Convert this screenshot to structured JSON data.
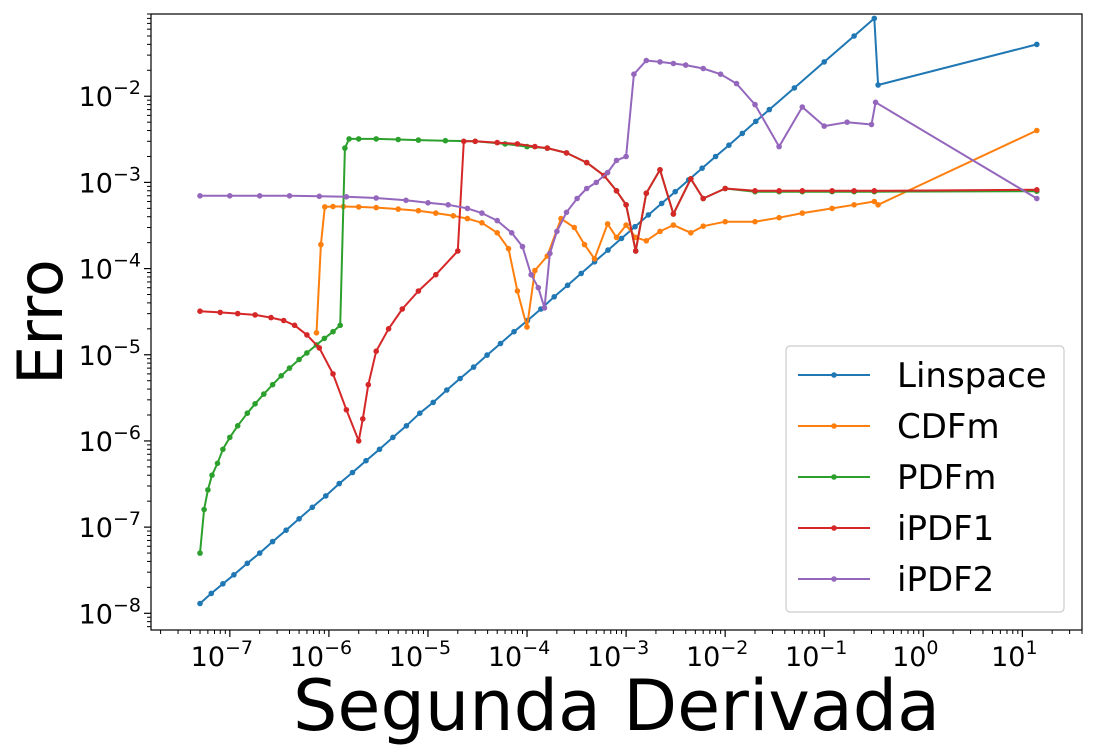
{
  "chart_data": {
    "type": "line",
    "title": "",
    "xlabel": "Segunda Derivada",
    "ylabel": "Erro",
    "xscale": "log",
    "yscale": "log",
    "xlim": [
      1.6e-08,
      40
    ],
    "ylim": [
      6.4e-09,
      0.09
    ],
    "grid": false,
    "legend_position": "lower right",
    "x_ticks": [
      {
        "base": "10",
        "exp": "−7",
        "value": 1e-07
      },
      {
        "base": "10",
        "exp": "−6",
        "value": 1e-06
      },
      {
        "base": "10",
        "exp": "−5",
        "value": 1e-05
      },
      {
        "base": "10",
        "exp": "−4",
        "value": 0.0001
      },
      {
        "base": "10",
        "exp": "−3",
        "value": 0.001
      },
      {
        "base": "10",
        "exp": "−2",
        "value": 0.01
      },
      {
        "base": "10",
        "exp": "−1",
        "value": 0.1
      },
      {
        "base": "10",
        "exp": "0",
        "value": 1
      },
      {
        "base": "10",
        "exp": "1",
        "value": 10
      }
    ],
    "y_ticks": [
      {
        "base": "10",
        "exp": "−8",
        "value": 1e-08
      },
      {
        "base": "10",
        "exp": "−7",
        "value": 1e-07
      },
      {
        "base": "10",
        "exp": "−6",
        "value": 1e-06
      },
      {
        "base": "10",
        "exp": "−5",
        "value": 1e-05
      },
      {
        "base": "10",
        "exp": "−4",
        "value": 0.0001
      },
      {
        "base": "10",
        "exp": "−3",
        "value": 0.001
      },
      {
        "base": "10",
        "exp": "−2",
        "value": 0.01
      }
    ],
    "series": [
      {
        "name": "Linspace",
        "color": "#1f77b4",
        "points": [
          [
            5e-08,
            1.3e-08
          ],
          [
            6.5e-08,
            1.7e-08
          ],
          [
            8.5e-08,
            2.2e-08
          ],
          [
            1.1e-07,
            2.8e-08
          ],
          [
            1.5e-07,
            3.8e-08
          ],
          [
            2e-07,
            5e-08
          ],
          [
            2.7e-07,
            6.8e-08
          ],
          [
            3.7e-07,
            9.2e-08
          ],
          [
            5e-07,
            1.25e-07
          ],
          [
            6.8e-07,
            1.7e-07
          ],
          [
            9.3e-07,
            2.3e-07
          ],
          [
            1.27e-06,
            3.2e-07
          ],
          [
            1.73e-06,
            4.3e-07
          ],
          [
            2.37e-06,
            5.9e-07
          ],
          [
            3.24e-06,
            8e-07
          ],
          [
            4.43e-06,
            1.1e-06
          ],
          [
            6.05e-06,
            1.5e-06
          ],
          [
            8.27e-06,
            2.1e-06
          ],
          [
            1.13e-05,
            2.8e-06
          ],
          [
            1.55e-05,
            3.9e-06
          ],
          [
            2.11e-05,
            5.3e-06
          ],
          [
            2.89e-05,
            7.2e-06
          ],
          [
            3.95e-05,
            9.9e-06
          ],
          [
            5.4e-05,
            1.35e-05
          ],
          [
            7.38e-05,
            1.85e-05
          ],
          [
            0.000101,
            2.5e-05
          ],
          [
            0.000138,
            3.4e-05
          ],
          [
            0.000188,
            4.7e-05
          ],
          [
            0.000257,
            6.4e-05
          ],
          [
            0.000352,
            8.8e-05
          ],
          [
            0.000481,
            0.00012
          ],
          [
            0.000657,
            0.000164
          ],
          [
            0.000898,
            0.000224
          ],
          [
            0.00123,
            0.000306
          ],
          [
            0.00168,
            0.00042
          ],
          [
            0.00229,
            0.00057
          ],
          [
            0.00313,
            0.00078
          ],
          [
            0.00428,
            0.00107
          ],
          [
            0.00585,
            0.00146
          ],
          [
            0.008,
            0.002
          ],
          [
            0.0109,
            0.0027
          ],
          [
            0.0149,
            0.0037
          ],
          [
            0.0204,
            0.0051
          ],
          [
            0.0279,
            0.007
          ],
          [
            0.05,
            0.0125
          ],
          [
            0.1,
            0.025
          ],
          [
            0.2,
            0.05
          ],
          [
            0.32,
            0.08
          ],
          [
            0.35,
            0.0135
          ],
          [
            14,
            0.04
          ]
        ]
      },
      {
        "name": "CDFm",
        "color": "#ff7f0e",
        "points": [
          [
            7.5e-07,
            1.8e-05
          ],
          [
            8.3e-07,
            0.00019
          ],
          [
            9.1e-07,
            0.00052
          ],
          [
            1.1e-06,
            0.000525
          ],
          [
            1.4e-06,
            0.000525
          ],
          [
            2e-06,
            0.00052
          ],
          [
            3e-06,
            0.00051
          ],
          [
            5e-06,
            0.00049
          ],
          [
            8e-06,
            0.00047
          ],
          [
            1.2e-05,
            0.00044
          ],
          [
            1.8e-05,
            0.00041
          ],
          [
            2.5e-05,
            0.00038
          ],
          [
            3.5e-05,
            0.00034
          ],
          [
            5e-05,
            0.00026
          ],
          [
            6.5e-05,
            0.00017
          ],
          [
            8e-05,
            5.5e-05
          ],
          [
            0.0001,
            2.1e-05
          ],
          [
            0.00012,
            9.5e-05
          ],
          [
            0.00016,
            0.00014
          ],
          [
            0.00022,
            0.00038
          ],
          [
            0.0003,
            0.0003
          ],
          [
            0.00038,
            0.00019
          ],
          [
            0.00048,
            0.00013
          ],
          [
            0.00065,
            0.00033
          ],
          [
            0.0008,
            0.00023
          ],
          [
            0.001,
            0.00032
          ],
          [
            0.00125,
            0.00023
          ],
          [
            0.0016,
            0.00021
          ],
          [
            0.0022,
            0.00027
          ],
          [
            0.003,
            0.00032
          ],
          [
            0.0045,
            0.00026
          ],
          [
            0.006,
            0.00031
          ],
          [
            0.01,
            0.00035
          ],
          [
            0.02,
            0.00035
          ],
          [
            0.035,
            0.00039
          ],
          [
            0.06,
            0.00044
          ],
          [
            0.12,
            0.0005
          ],
          [
            0.2,
            0.00055
          ],
          [
            0.32,
            0.0006
          ],
          [
            0.35,
            0.00055
          ],
          [
            14,
            0.004
          ]
        ]
      },
      {
        "name": "PDFm",
        "color": "#2ca02c",
        "points": [
          [
            5e-08,
            5e-08
          ],
          [
            5.5e-08,
            1.6e-07
          ],
          [
            6e-08,
            2.7e-07
          ],
          [
            6.6e-08,
            4e-07
          ],
          [
            7.5e-08,
            5.5e-07
          ],
          [
            8.5e-08,
            8e-07
          ],
          [
            1e-07,
            1.1e-06
          ],
          [
            1.2e-07,
            1.5e-06
          ],
          [
            1.5e-07,
            2.1e-06
          ],
          [
            1.8e-07,
            2.7e-06
          ],
          [
            2.2e-07,
            3.5e-06
          ],
          [
            2.7e-07,
            4.5e-06
          ],
          [
            3.3e-07,
            5.7e-06
          ],
          [
            4e-07,
            7e-06
          ],
          [
            5e-07,
            8.8e-06
          ],
          [
            6e-07,
            1.05e-05
          ],
          [
            7.5e-07,
            1.3e-05
          ],
          [
            9e-07,
            1.55e-05
          ],
          [
            1.1e-06,
            1.85e-05
          ],
          [
            1.3e-06,
            2.2e-05
          ],
          [
            1.45e-06,
            0.0025
          ],
          [
            1.6e-06,
            0.0032
          ],
          [
            2e-06,
            0.0032
          ],
          [
            3e-06,
            0.0032
          ],
          [
            5e-06,
            0.00315
          ],
          [
            8e-06,
            0.0031
          ],
          [
            1.5e-05,
            0.00305
          ],
          [
            3e-05,
            0.003
          ],
          [
            6e-05,
            0.0028
          ],
          [
            0.0001,
            0.0026
          ],
          [
            0.00016,
            0.0025
          ],
          [
            0.00025,
            0.0022
          ],
          [
            0.0004,
            0.0017
          ],
          [
            0.0006,
            0.0012
          ],
          [
            0.0008,
            0.0008
          ],
          [
            0.001,
            0.00055
          ],
          [
            0.00125,
            0.00016
          ],
          [
            0.0016,
            0.00075
          ],
          [
            0.0022,
            0.0014
          ],
          [
            0.003,
            0.00043
          ],
          [
            0.0045,
            0.0011
          ],
          [
            0.006,
            0.00065
          ],
          [
            0.01,
            0.00085
          ],
          [
            0.02,
            0.00078
          ],
          [
            0.035,
            0.00078
          ],
          [
            0.06,
            0.00078
          ],
          [
            0.12,
            0.00078
          ],
          [
            0.2,
            0.00078
          ],
          [
            0.32,
            0.00078
          ],
          [
            14,
            0.00079
          ]
        ]
      },
      {
        "name": "iPDF1",
        "color": "#d62728",
        "points": [
          [
            5e-08,
            3.2e-05
          ],
          [
            8e-08,
            3.1e-05
          ],
          [
            1.2e-07,
            3e-05
          ],
          [
            1.8e-07,
            2.9e-05
          ],
          [
            2.6e-07,
            2.7e-05
          ],
          [
            3.5e-07,
            2.5e-05
          ],
          [
            4.5e-07,
            2.2e-05
          ],
          [
            6e-07,
            1.7e-05
          ],
          [
            8e-07,
            1.2e-05
          ],
          [
            1.1e-06,
            6e-06
          ],
          [
            1.5e-06,
            2.3e-06
          ],
          [
            2e-06,
            1e-06
          ],
          [
            2.2e-06,
            1.8e-06
          ],
          [
            2.5e-06,
            4.5e-06
          ],
          [
            3e-06,
            1.1e-05
          ],
          [
            4e-06,
            2e-05
          ],
          [
            5.5e-06,
            3.4e-05
          ],
          [
            8e-06,
            5.5e-05
          ],
          [
            1.2e-05,
            8.5e-05
          ],
          [
            2e-05,
            0.00016
          ],
          [
            2.3e-05,
            0.003
          ],
          [
            3e-05,
            0.003
          ],
          [
            5e-05,
            0.0029
          ],
          [
            8e-05,
            0.0028
          ],
          [
            0.00012,
            0.0026
          ],
          [
            0.00016,
            0.0025
          ],
          [
            0.00025,
            0.0022
          ],
          [
            0.0004,
            0.0017
          ],
          [
            0.0006,
            0.0012
          ],
          [
            0.0008,
            0.0008
          ],
          [
            0.001,
            0.00055
          ],
          [
            0.00125,
            0.00016
          ],
          [
            0.0016,
            0.00075
          ],
          [
            0.0022,
            0.0014
          ],
          [
            0.003,
            0.00043
          ],
          [
            0.0045,
            0.0011
          ],
          [
            0.006,
            0.00065
          ],
          [
            0.01,
            0.00085
          ],
          [
            0.02,
            0.0008
          ],
          [
            0.035,
            0.0008
          ],
          [
            0.06,
            0.0008
          ],
          [
            0.12,
            0.0008
          ],
          [
            0.2,
            0.0008
          ],
          [
            0.32,
            0.0008
          ],
          [
            14,
            0.00082
          ]
        ]
      },
      {
        "name": "iPDF2",
        "color": "#9467bd",
        "points": [
          [
            5e-08,
            0.0007
          ],
          [
            1e-07,
            0.0007
          ],
          [
            2e-07,
            0.0007
          ],
          [
            4e-07,
            0.0007
          ],
          [
            8e-07,
            0.00069
          ],
          [
            1.5e-06,
            0.00068
          ],
          [
            3e-06,
            0.00066
          ],
          [
            6e-06,
            0.00062
          ],
          [
            1e-05,
            0.00058
          ],
          [
            1.6e-05,
            0.00055
          ],
          [
            2.5e-05,
            0.0005
          ],
          [
            3.5e-05,
            0.00044
          ],
          [
            5e-05,
            0.00036
          ],
          [
            7e-05,
            0.00026
          ],
          [
            9e-05,
            0.00018
          ],
          [
            0.00011,
            8.5e-05
          ],
          [
            0.00013,
            6e-05
          ],
          [
            0.00015,
            3.5e-05
          ],
          [
            0.00017,
            0.00015
          ],
          [
            0.0002,
            0.00027
          ],
          [
            0.00025,
            0.00045
          ],
          [
            0.00032,
            0.00065
          ],
          [
            0.0004,
            0.00085
          ],
          [
            0.0005,
            0.001
          ],
          [
            0.00065,
            0.0013
          ],
          [
            0.0008,
            0.0018
          ],
          [
            0.001,
            0.002
          ],
          [
            0.0012,
            0.018
          ],
          [
            0.0016,
            0.026
          ],
          [
            0.0022,
            0.025
          ],
          [
            0.003,
            0.024
          ],
          [
            0.004,
            0.023
          ],
          [
            0.006,
            0.021
          ],
          [
            0.009,
            0.018
          ],
          [
            0.013,
            0.014
          ],
          [
            0.02,
            0.008
          ],
          [
            0.035,
            0.0026
          ],
          [
            0.06,
            0.0075
          ],
          [
            0.1,
            0.0045
          ],
          [
            0.17,
            0.005
          ],
          [
            0.3,
            0.0047
          ],
          [
            0.33,
            0.0085
          ],
          [
            14,
            0.00065
          ]
        ]
      }
    ]
  }
}
